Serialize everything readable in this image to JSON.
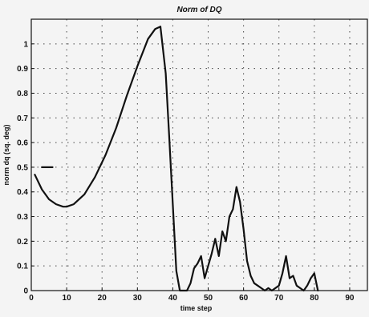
{
  "chart_data": {
    "type": "line",
    "title": "Norm of DQ",
    "xlabel": "time step",
    "ylabel": "norm dq (sq. deg)",
    "xlim": [
      0,
      95
    ],
    "ylim": [
      0,
      1.1
    ],
    "xticks": [
      0,
      10,
      20,
      30,
      40,
      50,
      60,
      70,
      80,
      90
    ],
    "yticks": [
      0,
      0.1,
      0.2,
      0.3,
      0.4,
      0.5,
      0.6,
      0.7,
      0.8,
      0.9,
      1
    ],
    "ytick_labels": [
      "0",
      "0.1",
      "0.2",
      "0.3",
      "0.4",
      "0.5",
      "0.6",
      "0.7",
      "0.8",
      "0.9",
      "1"
    ],
    "grid": true,
    "colors": {
      "line": "#111111",
      "grid": "#444444",
      "background": "#f4f4f4"
    },
    "series": [
      {
        "x": [
          1,
          3,
          5,
          7,
          9,
          10,
          12,
          15,
          18,
          21,
          24,
          27,
          30,
          33,
          35,
          36.5,
          38,
          39,
          40,
          41,
          42,
          44,
          45,
          46,
          47,
          48,
          49,
          50,
          51,
          52,
          53,
          54,
          55,
          56,
          57,
          58,
          59,
          60,
          61,
          62,
          63,
          64,
          65,
          66,
          67,
          68,
          70,
          71,
          72,
          73,
          74,
          75,
          76,
          77,
          78,
          79,
          80,
          81
        ],
        "values": [
          0.47,
          0.41,
          0.37,
          0.35,
          0.34,
          0.34,
          0.35,
          0.39,
          0.46,
          0.55,
          0.66,
          0.79,
          0.91,
          1.02,
          1.06,
          1.07,
          0.88,
          0.62,
          0.35,
          0.08,
          0.0,
          0.0,
          0.03,
          0.09,
          0.11,
          0.14,
          0.05,
          0.1,
          0.15,
          0.21,
          0.14,
          0.24,
          0.2,
          0.3,
          0.33,
          0.42,
          0.36,
          0.25,
          0.12,
          0.06,
          0.03,
          0.02,
          0.01,
          0.0,
          0.01,
          0.0,
          0.02,
          0.07,
          0.14,
          0.05,
          0.06,
          0.02,
          0.01,
          0.0,
          0.02,
          0.05,
          0.07,
          0.0
        ]
      },
      {
        "x": [
          3,
          6
        ],
        "values": [
          0.5,
          0.5
        ]
      }
    ]
  }
}
